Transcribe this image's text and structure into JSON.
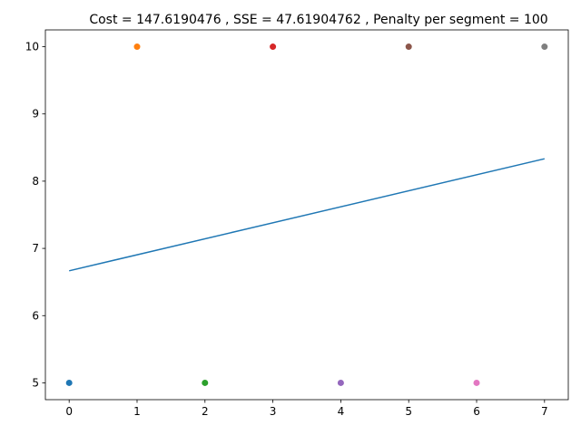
{
  "chart_data": {
    "type": "scatter",
    "title": "Cost = 147.6190476 , SSE = 47.61904762 , Penalty per segment = 100",
    "xlabel": "",
    "ylabel": "",
    "xlim": [
      -0.35,
      7.35
    ],
    "ylim": [
      4.75,
      10.25
    ],
    "xticks": [
      0,
      1,
      2,
      3,
      4,
      5,
      6,
      7
    ],
    "yticks": [
      5,
      6,
      7,
      8,
      9,
      10
    ],
    "grid": false,
    "points": [
      {
        "x": 0,
        "y": 5,
        "color": "#1f77b4"
      },
      {
        "x": 1,
        "y": 10,
        "color": "#ff7f0e"
      },
      {
        "x": 2,
        "y": 5,
        "color": "#2ca02c"
      },
      {
        "x": 3,
        "y": 10,
        "color": "#d62728"
      },
      {
        "x": 4,
        "y": 5,
        "color": "#9467bd"
      },
      {
        "x": 5,
        "y": 10,
        "color": "#8c564b"
      },
      {
        "x": 6,
        "y": 5,
        "color": "#e377c2"
      },
      {
        "x": 7,
        "y": 10,
        "color": "#7f7f7f"
      }
    ],
    "fit_line": {
      "x": [
        0,
        7
      ],
      "y": [
        6.6667,
        8.3333
      ],
      "color": "#1f77b4"
    }
  }
}
